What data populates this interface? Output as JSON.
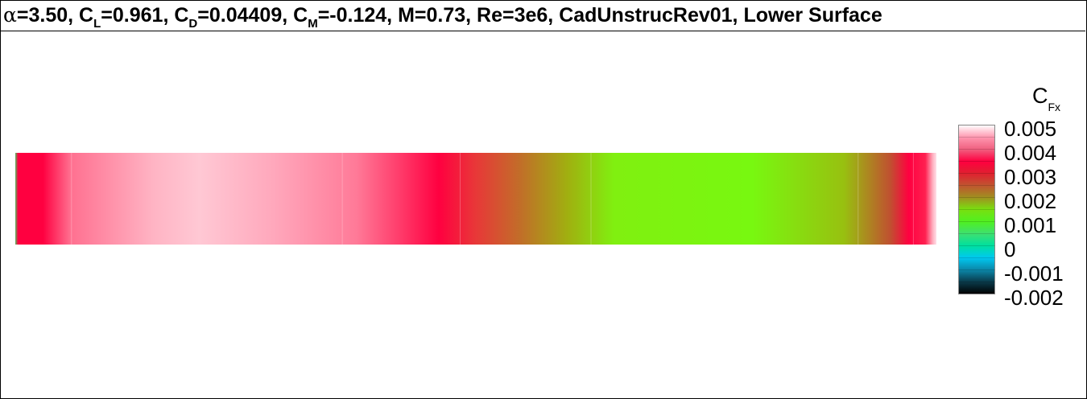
{
  "title": {
    "alpha_symbol": "α",
    "alpha_value": "=3.50, ",
    "cl_main": "C",
    "cl_sub": "L",
    "cl_value": "=0.961, ",
    "cd_main": "C",
    "cd_sub": "D",
    "cd_value": "=0.04409, ",
    "cm_main": "C",
    "cm_sub": "M",
    "cm_value": "=-0.124, M=0.73, Re=3e6, CadUnstrucRev01, Lower Surface"
  },
  "colorbar": {
    "label_main": "C",
    "label_sub": "Fx",
    "ticks": [
      "0.005",
      "0.004",
      "0.003",
      "0.002",
      "0.001",
      "0",
      "-0.001",
      "-0.002"
    ],
    "min": -0.002,
    "max": 0.005,
    "stops": [
      {
        "v": -0.002,
        "c": "#000000"
      },
      {
        "v": -0.0015,
        "c": "#0a3a4a"
      },
      {
        "v": -0.001,
        "c": "#0b86a8"
      },
      {
        "v": -0.0005,
        "c": "#00c8f0"
      },
      {
        "v": 0.0,
        "c": "#00e0a0"
      },
      {
        "v": 0.0005,
        "c": "#3ee070"
      },
      {
        "v": 0.001,
        "c": "#50f020"
      },
      {
        "v": 0.0015,
        "c": "#78e010"
      },
      {
        "v": 0.002,
        "c": "#a09020"
      },
      {
        "v": 0.0025,
        "c": "#c05530"
      },
      {
        "v": 0.003,
        "c": "#e02030"
      },
      {
        "v": 0.0035,
        "c": "#ff0040"
      },
      {
        "v": 0.004,
        "c": "#f06080"
      },
      {
        "v": 0.0045,
        "c": "#ff98b0"
      },
      {
        "v": 0.005,
        "c": "#ffffff"
      }
    ]
  },
  "surface": {
    "profile": [
      {
        "x": 0.0,
        "c": "#50c060"
      },
      {
        "x": 0.003,
        "c": "#ff0040"
      },
      {
        "x": 0.03,
        "c": "#ff0040"
      },
      {
        "x": 0.06,
        "c": "#ff7090"
      },
      {
        "x": 0.15,
        "c": "#ffb4c4"
      },
      {
        "x": 0.2,
        "c": "#ffc8d4"
      },
      {
        "x": 0.28,
        "c": "#ffa8bc"
      },
      {
        "x": 0.37,
        "c": "#ff7a98"
      },
      {
        "x": 0.42,
        "c": "#ff3868"
      },
      {
        "x": 0.46,
        "c": "#ff0040"
      },
      {
        "x": 0.5,
        "c": "#e83838"
      },
      {
        "x": 0.55,
        "c": "#c07028"
      },
      {
        "x": 0.6,
        "c": "#a0b010"
      },
      {
        "x": 0.65,
        "c": "#80f010"
      },
      {
        "x": 0.8,
        "c": "#78f810"
      },
      {
        "x": 0.9,
        "c": "#98c010"
      },
      {
        "x": 0.95,
        "c": "#c05030"
      },
      {
        "x": 0.97,
        "c": "#ff0040"
      },
      {
        "x": 0.988,
        "c": "#ff2050"
      },
      {
        "x": 0.996,
        "c": "#ffb0c0"
      },
      {
        "x": 1.0,
        "c": "#ffe0e8"
      }
    ],
    "bands_at": [
      0.061,
      0.355,
      0.483,
      0.625,
      0.915,
      0.975
    ]
  }
}
